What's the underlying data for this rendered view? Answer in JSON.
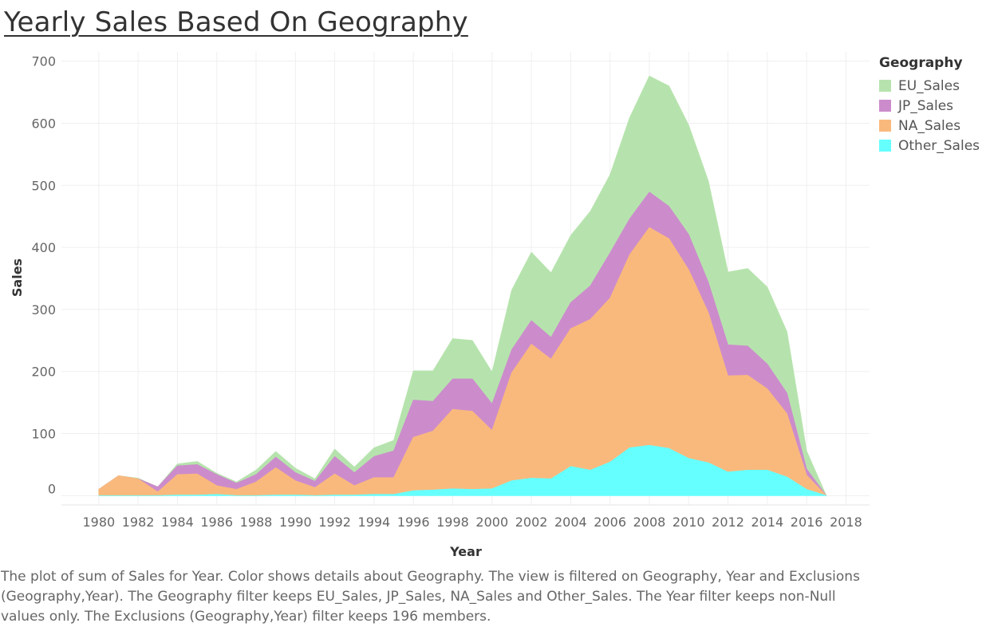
{
  "title": "Yearly Sales Based On Geography",
  "caption": "The plot of sum of Sales for Year.  Color shows details about Geography. The view is filtered on Geography, Year and Exclusions (Geography,Year). The Geography filter keeps EU_Sales, JP_Sales, NA_Sales and Other_Sales. The Year filter keeps non-Null values only. The Exclusions (Geography,Year) filter keeps 196 members.",
  "chart_data": {
    "type": "area",
    "stacked": true,
    "title": "Yearly Sales Based On Geography",
    "xlabel": "Year",
    "ylabel": "Sales",
    "xlim": [
      1978.1,
      2019.2
    ],
    "ylim": [
      -15,
      715
    ],
    "x_ticks": [
      "1980",
      "1982",
      "1984",
      "1986",
      "1988",
      "1990",
      "1992",
      "1994",
      "1996",
      "1998",
      "2000",
      "2002",
      "2004",
      "2006",
      "2008",
      "2010",
      "2012",
      "2014",
      "2016",
      "2018"
    ],
    "y_ticks": [
      "0",
      "100",
      "200",
      "300",
      "400",
      "500",
      "600",
      "700"
    ],
    "grid": true,
    "legend": {
      "title": "Geography",
      "position": "right"
    },
    "x": [
      1980,
      1981,
      1982,
      1983,
      1984,
      1985,
      1986,
      1987,
      1988,
      1989,
      1990,
      1991,
      1992,
      1993,
      1994,
      1995,
      1996,
      1997,
      1998,
      1999,
      2000,
      2001,
      2002,
      2003,
      2004,
      2005,
      2006,
      2007,
      2008,
      2009,
      2010,
      2011,
      2012,
      2013,
      2014,
      2015,
      2016,
      2017
    ],
    "series": [
      {
        "name": "Other_Sales",
        "color": "#66ffff",
        "values": [
          0,
          0,
          0,
          0,
          1,
          1,
          2,
          0,
          0,
          1,
          1,
          0,
          1,
          1,
          2,
          2,
          8,
          9,
          11,
          10,
          11,
          24,
          28,
          27,
          47,
          41,
          54,
          77,
          81,
          76,
          60,
          53,
          38,
          41,
          41,
          30,
          10,
          0
        ]
      },
      {
        "name": "NA_Sales",
        "color": "#f9b97d",
        "values": [
          10,
          32,
          27,
          6,
          33,
          34,
          14,
          10,
          22,
          44,
          23,
          13,
          34,
          15,
          27,
          27,
          86,
          95,
          128,
          126,
          94,
          174,
          216,
          193,
          222,
          243,
          264,
          311,
          351,
          338,
          304,
          242,
          155,
          153,
          131,
          102,
          23,
          0
        ]
      },
      {
        "name": "JP_Sales",
        "color": "#cc8ccc",
        "values": [
          0,
          0,
          0,
          8,
          14,
          15,
          18,
          10,
          12,
          17,
          13,
          10,
          28,
          21,
          34,
          43,
          60,
          48,
          49,
          52,
          43,
          37,
          38,
          35,
          42,
          54,
          73,
          58,
          57,
          52,
          57,
          49,
          50,
          47,
          40,
          33,
          10,
          0
        ]
      },
      {
        "name": "EU_Sales",
        "color": "#b6e3ad",
        "values": [
          0,
          0,
          1,
          0,
          3,
          5,
          2,
          2,
          7,
          9,
          7,
          4,
          12,
          9,
          14,
          17,
          47,
          49,
          65,
          62,
          51,
          96,
          110,
          104,
          108,
          120,
          126,
          163,
          187,
          194,
          176,
          163,
          117,
          125,
          124,
          99,
          29,
          0
        ]
      }
    ]
  }
}
